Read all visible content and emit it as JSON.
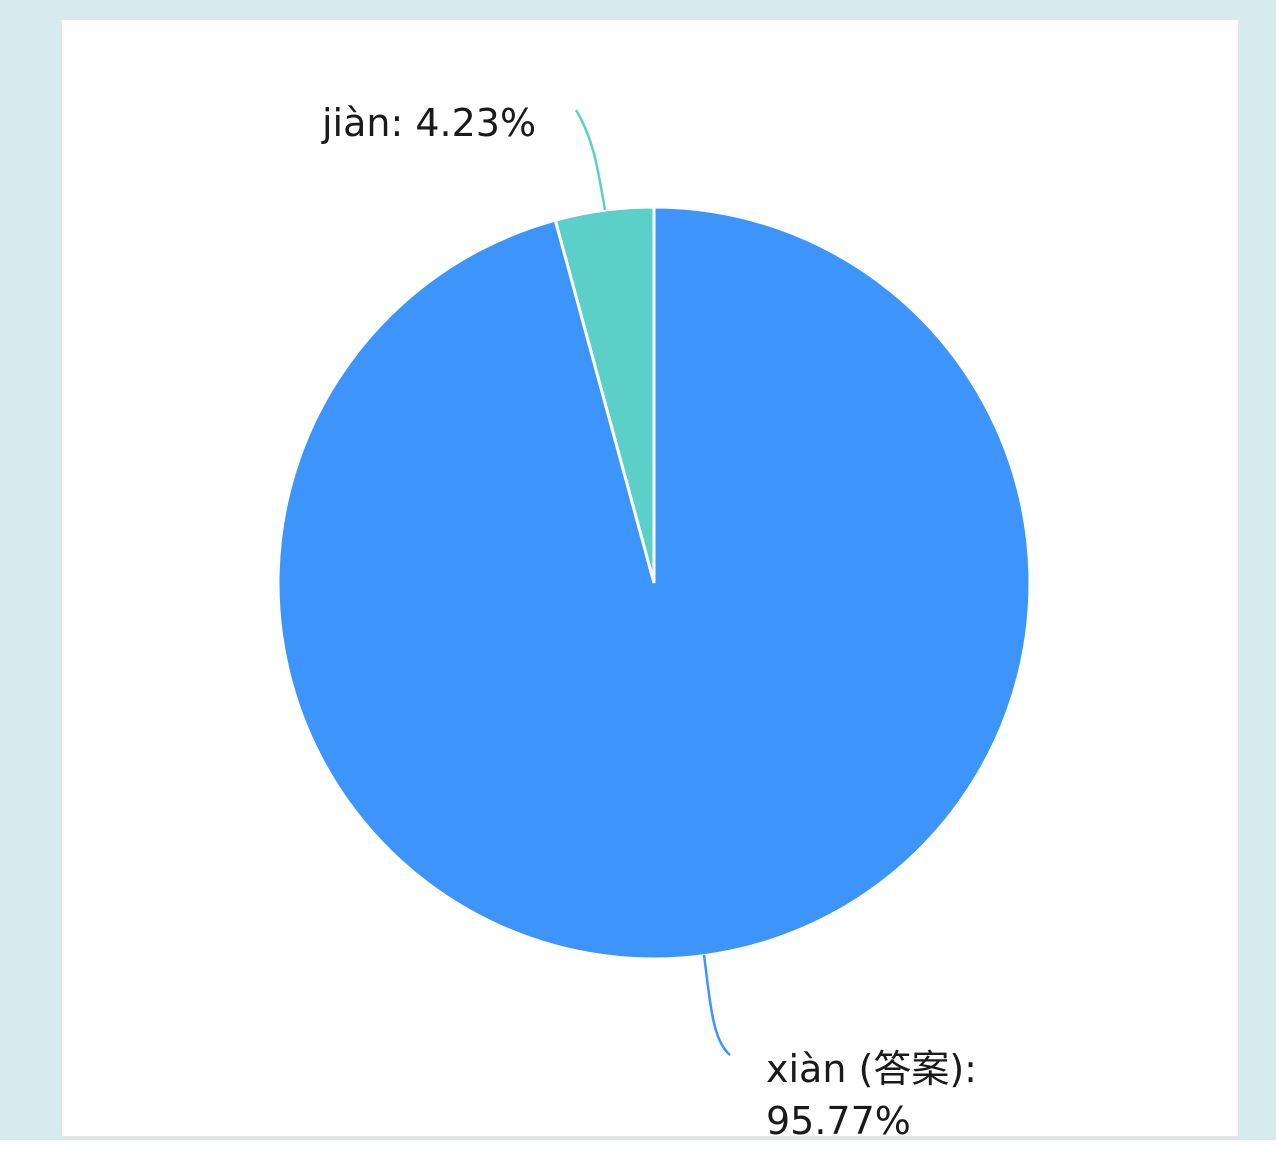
{
  "chart_data": {
    "type": "pie",
    "slices": [
      {
        "name": "jiàn",
        "value": 4.23,
        "label_line1": "jiàn: 4.23%",
        "label_line2": "",
        "color": "#5ccfc8"
      },
      {
        "name": "xiàn (答案)",
        "value": 95.77,
        "label_line1": "xiàn (答案):",
        "label_line2": "95.77%",
        "color": "#3d95fb"
      }
    ]
  },
  "colors": {
    "page_bg": "#d6ecec",
    "card_bg": "#ffffff",
    "slice_border": "#ffffff"
  }
}
